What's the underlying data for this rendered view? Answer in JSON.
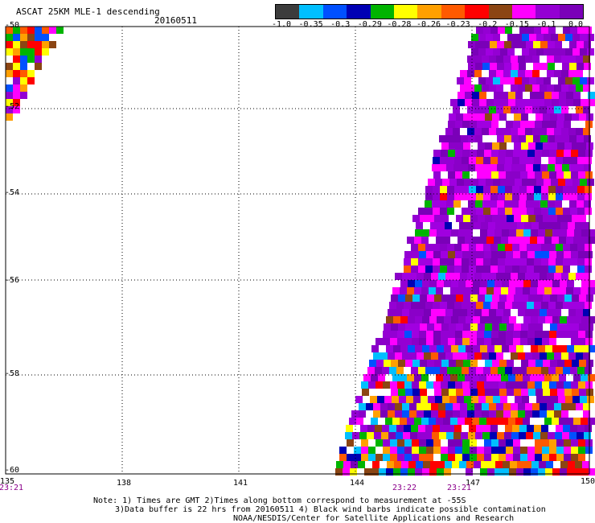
{
  "header": {
    "title": "ASCAT 25KM MLE-1 descending",
    "date": "20160511"
  },
  "colorbar": {
    "labels": [
      "-1.0",
      "-0.35",
      "-0.3",
      "-0.29",
      "-0.28",
      "-0.26",
      "-0.23",
      "-0.2",
      "-0.15",
      "-0.1",
      "0.0"
    ],
    "colors": [
      "#3c3c3c",
      "#00bfff",
      "#0050ff",
      "#0000b4",
      "#00b400",
      "#ffff00",
      "#ffa000",
      "#ff5a00",
      "#ff0000",
      "#8b4513",
      "#ff00ff",
      "#9400d3",
      "#7a00b8"
    ]
  },
  "axes": {
    "lat_labels": [
      "-50",
      "-52",
      "-54",
      "-56",
      "-58",
      "-60"
    ],
    "lon_labels": [
      "135",
      "138",
      "141",
      "144",
      "147",
      "150"
    ]
  },
  "times": [
    {
      "label": "23:21",
      "lon": 135
    },
    {
      "label": "23:22",
      "lon": 145.5
    },
    {
      "label": "23:21",
      "lon": 146.7
    }
  ],
  "notes": {
    "line1": "Note: 1) Times are GMT 2)Times along bottom correspond to measurement at -55S",
    "line2": "3)Data buffer is 22 hrs from 20160511 4) Black wind barbs indicate possible contamination",
    "line3": "NOAA/NESDIS/Center for Satellite Applications and Research"
  }
}
